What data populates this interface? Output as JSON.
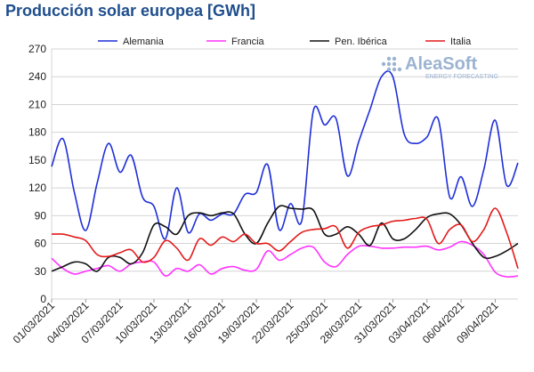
{
  "title": "Producción solar europea [GWh]",
  "logo": {
    "name": "AleaSoft",
    "tagline": "ENERGY FORECASTING",
    "color": "#9bb3d1"
  },
  "chart_data": {
    "type": "line",
    "ylim": [
      0,
      270
    ],
    "yticks": [
      0,
      30,
      60,
      90,
      120,
      150,
      180,
      210,
      240,
      270
    ],
    "grid": true,
    "legend_position": "top",
    "x": [
      "01/03",
      "02/03",
      "03/03",
      "04/03",
      "05/03",
      "06/03",
      "07/03",
      "08/03",
      "09/03",
      "10/03",
      "11/03",
      "12/03",
      "13/03",
      "14/03",
      "15/03",
      "16/03",
      "17/03",
      "18/03",
      "19/03",
      "20/03",
      "21/03",
      "22/03",
      "23/03",
      "24/03",
      "25/03",
      "26/03",
      "27/03",
      "28/03",
      "29/03",
      "30/03",
      "31/03",
      "01/04",
      "02/04",
      "03/04",
      "04/04",
      "05/04",
      "06/04",
      "07/04",
      "08/04",
      "09/04",
      "10/04",
      "11/04"
    ],
    "xtick_labels": [
      "01/03/2021",
      "04/03/2021",
      "07/03/2021",
      "10/03/2021",
      "13/03/2021",
      "16/03/2021",
      "19/03/2021",
      "22/03/2021",
      "25/03/2021",
      "28/03/2021",
      "31/03/2021",
      "03/04/2021",
      "06/04/2021",
      "09/04/2021"
    ],
    "series": [
      {
        "name": "Alemania",
        "color": "#1f2fd8",
        "values": [
          143,
          173,
          115,
          74,
          125,
          168,
          137,
          155,
          110,
          100,
          65,
          120,
          72,
          92,
          85,
          92,
          92,
          113,
          115,
          145,
          75,
          103,
          85,
          203,
          188,
          195,
          133,
          170,
          205,
          240,
          240,
          178,
          168,
          175,
          194,
          110,
          132,
          100,
          140,
          193,
          123,
          147
        ]
      },
      {
        "name": "Francia",
        "color": "#ff33ff",
        "values": [
          44,
          33,
          27,
          30,
          33,
          36,
          30,
          38,
          40,
          40,
          25,
          33,
          30,
          37,
          27,
          33,
          35,
          31,
          32,
          52,
          42,
          48,
          55,
          56,
          40,
          35,
          48,
          57,
          57,
          55,
          55,
          56,
          56,
          57,
          53,
          56,
          62,
          58,
          48,
          29,
          24,
          25
        ]
      },
      {
        "name": "Pen. Ibérica",
        "color": "#111111",
        "values": [
          30,
          35,
          40,
          38,
          30,
          45,
          45,
          38,
          50,
          80,
          78,
          70,
          90,
          93,
          90,
          93,
          92,
          70,
          60,
          82,
          100,
          98,
          97,
          96,
          70,
          70,
          78,
          70,
          58,
          82,
          65,
          65,
          75,
          88,
          92,
          92,
          80,
          60,
          45,
          46,
          52,
          60
        ]
      },
      {
        "name": "Italia",
        "color": "#e31a1a",
        "values": [
          70,
          70,
          67,
          63,
          48,
          46,
          50,
          53,
          40,
          45,
          63,
          55,
          42,
          65,
          58,
          67,
          62,
          70,
          60,
          60,
          52,
          62,
          72,
          75,
          76,
          78,
          55,
          72,
          78,
          80,
          84,
          85,
          87,
          86,
          60,
          75,
          80,
          62,
          75,
          98,
          72,
          33
        ]
      }
    ]
  }
}
